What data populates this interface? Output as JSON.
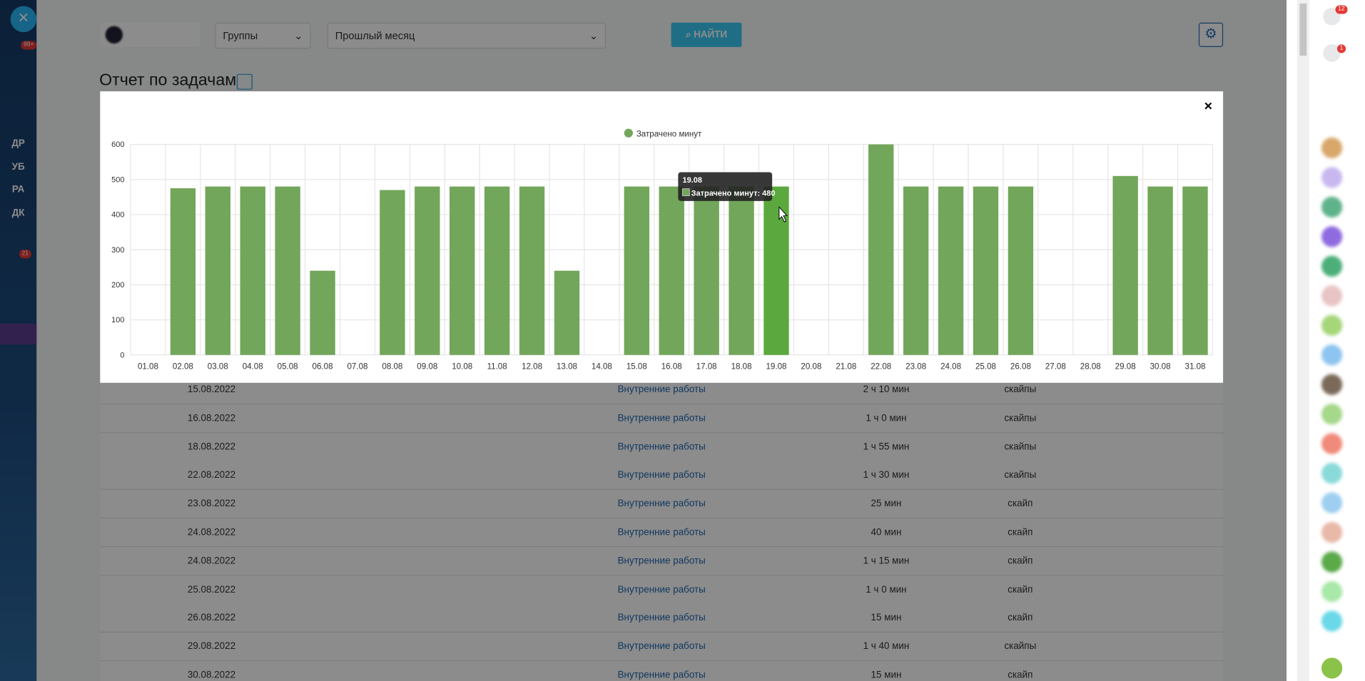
{
  "ui": {
    "sidebar": {
      "badge_top": "99+",
      "items": [
        "ДР",
        "УБ",
        "РА",
        "ДК"
      ],
      "badge_bottom": "21"
    },
    "right_badges": [
      "12",
      "1"
    ],
    "filters": {
      "group": "Группы",
      "period": "Прошлый месяц",
      "search": "НАЙТИ"
    },
    "page_title": "Отчет по задачам",
    "tooltip_text": "Затрачено минут: 480",
    "table": {
      "rows": [
        [
          "15.08.2022",
          "Внутренние работы",
          "2 ч 10 мин",
          "скайпы"
        ],
        [
          "16.08.2022",
          "Внутренние работы",
          "1 ч 0 мин",
          "скайпы"
        ],
        [
          "18.08.2022",
          "Внутренние работы",
          "1 ч 55 мин",
          "скайпы"
        ],
        [
          "22.08.2022",
          "Внутренние работы",
          "1 ч 30 мин",
          "скайпы"
        ],
        [
          "23.08.2022",
          "Внутренние работы",
          "25 мин",
          "скайп"
        ],
        [
          "24.08.2022",
          "Внутренние работы",
          "40 мин",
          "скайп"
        ],
        [
          "24.08.2022",
          "Внутренние работы",
          "1 ч 15 мин",
          "скайп"
        ],
        [
          "25.08.2022",
          "Внутренние работы",
          "1 ч 0 мин",
          "скайп"
        ],
        [
          "26.08.2022",
          "Внутренние работы",
          "15 мин",
          "скайп"
        ],
        [
          "29.08.2022",
          "Внутренние работы",
          "1 ч 40 мин",
          "скайпы"
        ],
        [
          "30.08.2022",
          "Внутренние работы",
          "15 мин",
          "скайп"
        ]
      ]
    }
  },
  "chart_data": {
    "type": "bar",
    "legend": "top",
    "categories": [
      "01.08",
      "02.08",
      "03.08",
      "04.08",
      "05.08",
      "06.08",
      "07.08",
      "08.08",
      "09.08",
      "10.08",
      "11.08",
      "12.08",
      "13.08",
      "14.08",
      "15.08",
      "16.08",
      "17.08",
      "18.08",
      "19.08",
      "20.08",
      "21.08",
      "22.08",
      "23.08",
      "24.08",
      "25.08",
      "26.08",
      "27.08",
      "28.08",
      "29.08",
      "30.08",
      "31.08"
    ],
    "series": [
      {
        "name": "Затрачено минут",
        "color": "#72a65a",
        "values": [
          0,
          475,
          480,
          480,
          480,
          240,
          0,
          470,
          480,
          480,
          480,
          480,
          240,
          0,
          480,
          480,
          480,
          480,
          480,
          0,
          0,
          600,
          480,
          480,
          480,
          480,
          0,
          0,
          510,
          480,
          480
        ]
      }
    ],
    "ylim": [
      0,
      600
    ],
    "yticks": [
      0,
      100,
      200,
      300,
      400,
      500,
      600
    ],
    "grid": true
  }
}
